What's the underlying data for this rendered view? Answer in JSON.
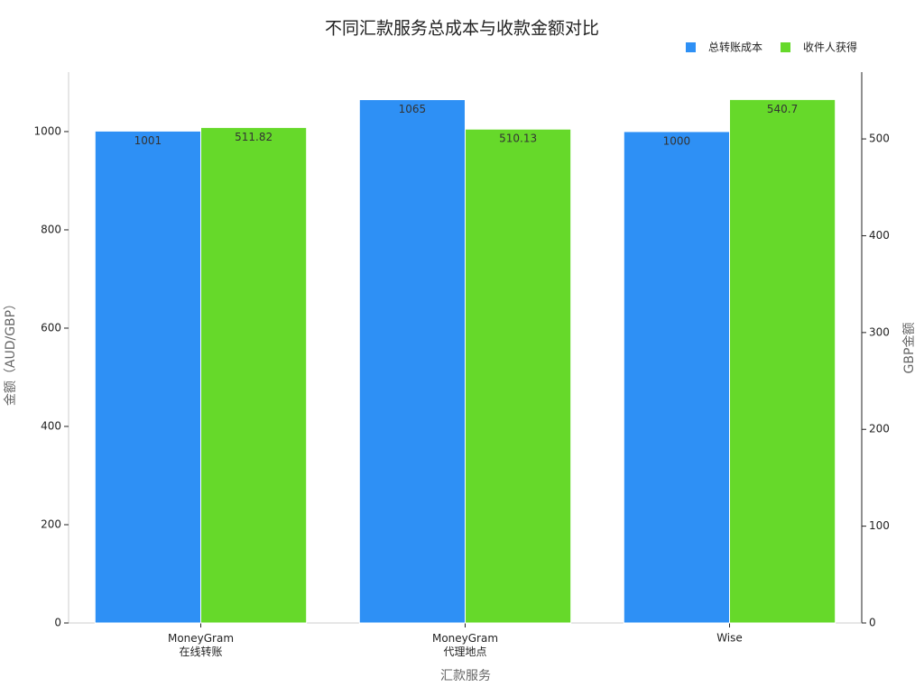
{
  "chart_data": {
    "type": "bar",
    "title": "不同汇款服务总成本与收款金额对比",
    "x_label": "汇款服务",
    "y_label": "金额（AUD/GBP）",
    "y2_label": "GBP金额",
    "categories": [
      "MoneyGram\n在线转账",
      "MoneyGram\n代理地点",
      "Wise"
    ],
    "series": [
      {
        "name": "总转账成本",
        "color": "#2e90f5",
        "values": [
          1001,
          1065,
          1000
        ]
      },
      {
        "name": "收件人获得",
        "color": "#66d92a",
        "values": [
          511.82,
          510.13,
          540.7
        ],
        "axis": "y2"
      }
    ],
    "ylim": [
      0,
      1121
    ],
    "yticks": [
      0,
      200,
      400,
      600,
      800,
      1000
    ],
    "y2lim": [
      0,
      569
    ],
    "y2ticks": [
      0,
      100,
      200,
      300,
      400,
      500
    ],
    "legend": "upper right",
    "grid": false
  }
}
